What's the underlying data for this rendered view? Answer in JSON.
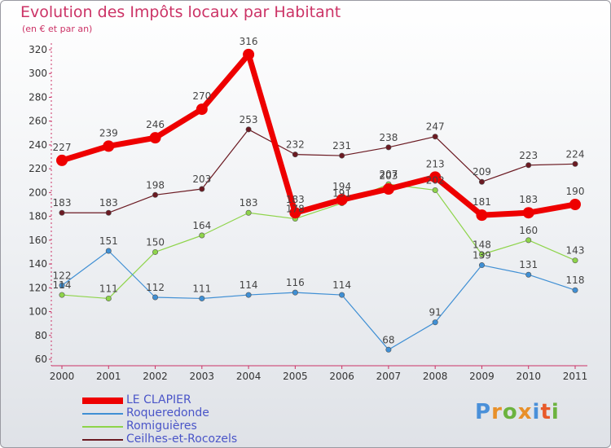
{
  "header": {
    "title": "Evolution des Impôts locaux par Habitant",
    "subtitle": "(en € et par an)"
  },
  "logo": {
    "text": "Proxiti",
    "letters": [
      "P",
      "r",
      "o",
      "x",
      "i",
      "t",
      "i"
    ],
    "colors": [
      "#4a90d9",
      "#e8902a",
      "#6cb33f",
      "#e8902a",
      "#4a90d9",
      "#e85a2a",
      "#6cb33f"
    ]
  },
  "chart_data": {
    "type": "line",
    "title": "Evolution des Impôts locaux par Habitant",
    "subtitle": "(en € et par an)",
    "x": [
      "2000",
      "2001",
      "2002",
      "2003",
      "2004",
      "2005",
      "2006",
      "2007",
      "2008",
      "2009",
      "2010",
      "2011"
    ],
    "ylim": [
      60,
      320
    ],
    "yticks": [
      60,
      80,
      100,
      120,
      140,
      160,
      180,
      200,
      220,
      240,
      260,
      280,
      300,
      320
    ],
    "grid": false,
    "legend_position": "bottom-left",
    "series": [
      {
        "name": "Ceilhes-et-Rocozels",
        "color": "#6b1a22",
        "values": [
          183,
          183,
          198,
          203,
          253,
          232,
          231,
          238,
          247,
          209,
          223,
          224
        ]
      },
      {
        "name": "Romiguières",
        "color": "#8ed44a",
        "values": [
          114,
          111,
          150,
          164,
          183,
          178,
          191,
          207,
          202,
          148,
          160,
          143
        ]
      },
      {
        "name": "Roqueredonde",
        "color": "#3f8fd4",
        "values": [
          122,
          151,
          112,
          111,
          114,
          116,
          114,
          68,
          91,
          139,
          131,
          118
        ]
      },
      {
        "name": "LE CLAPIER",
        "color": "#ee0000",
        "values": [
          227,
          239,
          246,
          270,
          316,
          183,
          194,
          203,
          213,
          181,
          183,
          190
        ]
      }
    ]
  },
  "legend": {
    "items": [
      {
        "name": "LE CLAPIER",
        "color": "#ee0000"
      },
      {
        "name": "Roqueredonde",
        "color": "#3f8fd4"
      },
      {
        "name": "Romiguières",
        "color": "#8ed44a"
      },
      {
        "name": "Ceilhes-et-Rocozels",
        "color": "#6b1a22"
      }
    ]
  }
}
